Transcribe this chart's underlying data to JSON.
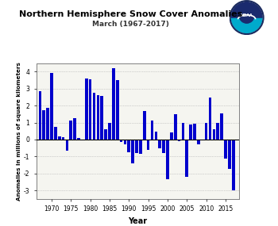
{
  "title": "Northern Hemisphere Snow Cover Anomalies",
  "subtitle": "March (1967-2017)",
  "xlabel": "Year",
  "ylabel": "Anomalies in millions of square kilometers",
  "bar_color": "#0000CC",
  "years": [
    1967,
    1968,
    1969,
    1970,
    1971,
    1972,
    1973,
    1974,
    1975,
    1976,
    1977,
    1978,
    1979,
    1980,
    1981,
    1982,
    1983,
    1984,
    1985,
    1986,
    1987,
    1988,
    1989,
    1990,
    1991,
    1992,
    1993,
    1994,
    1995,
    1996,
    1997,
    1998,
    1999,
    2000,
    2001,
    2002,
    2003,
    2004,
    2005,
    2006,
    2007,
    2008,
    2009,
    2010,
    2011,
    2012,
    2013,
    2014,
    2015,
    2016,
    2017
  ],
  "values": [
    2.85,
    1.75,
    1.85,
    3.95,
    0.75,
    0.2,
    0.15,
    -0.65,
    1.1,
    1.25,
    0.1,
    -0.05,
    3.6,
    3.55,
    2.75,
    2.6,
    2.55,
    0.6,
    1.0,
    4.2,
    3.5,
    -0.15,
    -0.3,
    -0.75,
    -1.4,
    -0.8,
    -0.85,
    1.7,
    -0.6,
    1.1,
    0.45,
    -0.5,
    -0.8,
    -2.35,
    0.4,
    1.5,
    -0.1,
    1.0,
    -2.2,
    0.9,
    0.95,
    -0.3,
    -0.05,
    1.0,
    2.5,
    0.6,
    1.0,
    1.55,
    -1.1,
    -1.75,
    -3.0
  ],
  "ylim": [
    -3.5,
    4.5
  ],
  "yticks": [
    -3.0,
    -2.0,
    -1.0,
    0.0,
    1.0,
    2.0,
    3.0,
    4.0
  ],
  "xticks": [
    1970,
    1975,
    1980,
    1985,
    1990,
    1995,
    2000,
    2005,
    2010,
    2015
  ],
  "grid_color": "#aaaaaa",
  "background_color": "#f5f5f0",
  "title_fontsize": 8,
  "subtitle_fontsize": 6.5,
  "xlabel_fontsize": 7,
  "ylabel_fontsize": 5.2,
  "tick_fontsize": 5.5,
  "bar_width": 0.75
}
